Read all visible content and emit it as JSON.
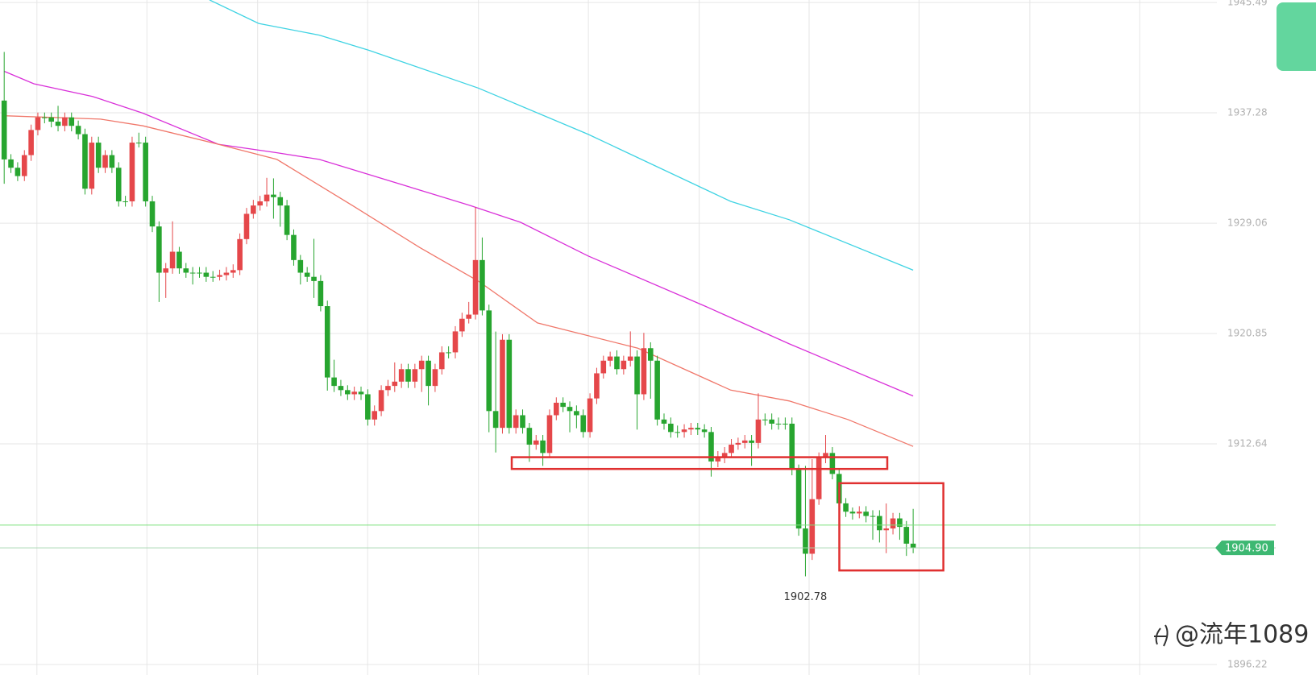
{
  "chart_data": {
    "type": "candlestick",
    "ylim": [
      1896.22,
      1945.49
    ],
    "yticks": [
      1945.49,
      1937.28,
      1929.06,
      1920.85,
      1912.64,
      1896.22
    ],
    "grid": true,
    "up_color": "#e5474a",
    "down_color": "#27a52f",
    "candles": [
      [
        1938.19,
        1941.81,
        1932.0,
        1933.81
      ],
      [
        1933.81,
        1934.2,
        1932.8,
        1933.19
      ],
      [
        1933.19,
        1933.6,
        1932.2,
        1932.57
      ],
      [
        1932.57,
        1934.5,
        1932.2,
        1934.13
      ],
      [
        1934.13,
        1936.4,
        1933.7,
        1936.0
      ],
      [
        1936.0,
        1937.3,
        1935.6,
        1936.94
      ],
      [
        1936.94,
        1937.3,
        1936.5,
        1936.94
      ],
      [
        1936.94,
        1937.3,
        1936.2,
        1936.62
      ],
      [
        1936.62,
        1937.8,
        1935.9,
        1936.31
      ],
      [
        1936.31,
        1937.3,
        1935.9,
        1936.94
      ],
      [
        1936.94,
        1937.3,
        1935.9,
        1936.31
      ],
      [
        1936.31,
        1936.7,
        1935.3,
        1935.69
      ],
      [
        1935.69,
        1936.1,
        1931.2,
        1931.63
      ],
      [
        1931.63,
        1935.5,
        1931.2,
        1935.06
      ],
      [
        1935.06,
        1935.5,
        1932.8,
        1933.19
      ],
      [
        1933.19,
        1934.5,
        1932.8,
        1934.13
      ],
      [
        1934.13,
        1934.5,
        1932.8,
        1933.19
      ],
      [
        1933.19,
        1933.6,
        1930.3,
        1930.69
      ],
      [
        1930.69,
        1931.1,
        1930.3,
        1930.69
      ],
      [
        1930.69,
        1935.5,
        1930.3,
        1935.06
      ],
      [
        1935.06,
        1935.8,
        1934.7,
        1935.06
      ],
      [
        1935.06,
        1935.5,
        1930.3,
        1930.69
      ],
      [
        1930.69,
        1931.1,
        1928.4,
        1928.82
      ],
      [
        1928.82,
        1929.2,
        1923.2,
        1925.38
      ],
      [
        1925.38,
        1926.1,
        1923.5,
        1925.7
      ],
      [
        1925.7,
        1929.2,
        1925.3,
        1926.94
      ],
      [
        1926.94,
        1927.3,
        1925.3,
        1925.7
      ],
      [
        1925.7,
        1926.1,
        1925.0,
        1925.38
      ],
      [
        1925.38,
        1925.8,
        1924.5,
        1925.38
      ],
      [
        1925.38,
        1925.8,
        1925.0,
        1925.38
      ],
      [
        1925.38,
        1925.8,
        1924.7,
        1925.07
      ],
      [
        1925.07,
        1925.5,
        1924.7,
        1925.07
      ],
      [
        1925.07,
        1925.6,
        1924.8,
        1925.2
      ],
      [
        1925.2,
        1925.8,
        1924.8,
        1925.38
      ],
      [
        1925.38,
        1926.0,
        1925.0,
        1925.57
      ],
      [
        1925.57,
        1928.3,
        1925.2,
        1927.88
      ],
      [
        1927.88,
        1930.2,
        1927.5,
        1929.76
      ],
      [
        1929.76,
        1930.8,
        1929.4,
        1930.38
      ],
      [
        1930.38,
        1931.1,
        1930.0,
        1930.69
      ],
      [
        1930.69,
        1932.44,
        1930.3,
        1931.19
      ],
      [
        1931.19,
        1932.4,
        1929.4,
        1931.0
      ],
      [
        1931.0,
        1931.4,
        1928.8,
        1930.38
      ],
      [
        1930.38,
        1930.8,
        1927.8,
        1928.19
      ],
      [
        1928.19,
        1928.6,
        1925.9,
        1926.32
      ],
      [
        1926.32,
        1926.7,
        1924.5,
        1925.38
      ],
      [
        1925.38,
        1925.8,
        1924.7,
        1925.07
      ],
      [
        1925.07,
        1927.9,
        1923.5,
        1924.76
      ],
      [
        1924.76,
        1925.2,
        1922.5,
        1922.89
      ],
      [
        1922.89,
        1923.3,
        1916.6,
        1917.58
      ],
      [
        1917.58,
        1918.9,
        1916.5,
        1916.95
      ],
      [
        1916.95,
        1917.4,
        1916.2,
        1916.64
      ],
      [
        1916.64,
        1917.0,
        1915.9,
        1916.33
      ],
      [
        1916.33,
        1916.9,
        1915.9,
        1916.52
      ],
      [
        1916.52,
        1916.9,
        1915.9,
        1916.33
      ],
      [
        1916.33,
        1916.7,
        1914.0,
        1914.45
      ],
      [
        1914.45,
        1915.5,
        1914.0,
        1915.08
      ],
      [
        1915.08,
        1917.0,
        1914.7,
        1916.64
      ],
      [
        1916.64,
        1917.4,
        1916.2,
        1916.95
      ],
      [
        1916.95,
        1918.7,
        1916.5,
        1917.27
      ],
      [
        1917.27,
        1918.6,
        1916.8,
        1918.2
      ],
      [
        1918.2,
        1918.6,
        1916.8,
        1917.27
      ],
      [
        1917.27,
        1918.6,
        1916.8,
        1918.2
      ],
      [
        1918.2,
        1919.2,
        1916.5,
        1918.83
      ],
      [
        1918.83,
        1919.2,
        1915.5,
        1916.95
      ],
      [
        1916.95,
        1918.6,
        1916.5,
        1918.2
      ],
      [
        1918.2,
        1919.9,
        1917.8,
        1919.45
      ],
      [
        1919.45,
        1919.9,
        1919.0,
        1919.45
      ],
      [
        1919.45,
        1921.4,
        1919.0,
        1921.01
      ],
      [
        1921.01,
        1922.4,
        1920.6,
        1921.95
      ],
      [
        1921.95,
        1923.2,
        1921.6,
        1922.26
      ],
      [
        1922.26,
        1930.26,
        1921.9,
        1926.32
      ],
      [
        1926.32,
        1928.0,
        1922.2,
        1922.57
      ],
      [
        1922.57,
        1923.0,
        1913.5,
        1915.08
      ],
      [
        1915.08,
        1921.0,
        1912.0,
        1913.83
      ],
      [
        1913.83,
        1920.8,
        1913.4,
        1920.39
      ],
      [
        1920.39,
        1920.8,
        1913.4,
        1913.83
      ],
      [
        1913.83,
        1915.2,
        1913.4,
        1914.77
      ],
      [
        1914.77,
        1915.2,
        1913.4,
        1913.83
      ],
      [
        1913.83,
        1914.2,
        1911.3,
        1912.58
      ],
      [
        1912.58,
        1913.3,
        1912.2,
        1912.89
      ],
      [
        1912.89,
        1913.3,
        1911.0,
        1911.96
      ],
      [
        1911.96,
        1915.2,
        1911.6,
        1914.77
      ],
      [
        1914.77,
        1916.1,
        1914.4,
        1915.7
      ],
      [
        1915.7,
        1916.1,
        1915.0,
        1915.39
      ],
      [
        1915.39,
        1915.8,
        1913.5,
        1915.08
      ],
      [
        1915.08,
        1915.5,
        1913.8,
        1914.77
      ],
      [
        1914.77,
        1915.2,
        1913.1,
        1913.52
      ],
      [
        1913.52,
        1916.4,
        1913.1,
        1916.02
      ],
      [
        1916.02,
        1918.3,
        1915.6,
        1917.89
      ],
      [
        1917.89,
        1919.2,
        1917.5,
        1918.83
      ],
      [
        1918.83,
        1919.5,
        1918.4,
        1919.14
      ],
      [
        1919.14,
        1919.6,
        1917.8,
        1918.2
      ],
      [
        1918.2,
        1919.2,
        1917.8,
        1918.83
      ],
      [
        1918.83,
        1921.01,
        1918.4,
        1919.14
      ],
      [
        1919.14,
        1919.6,
        1913.7,
        1916.33
      ],
      [
        1916.33,
        1920.9,
        1915.9,
        1919.76
      ],
      [
        1919.76,
        1920.2,
        1916.0,
        1918.83
      ],
      [
        1918.83,
        1919.2,
        1914.0,
        1914.45
      ],
      [
        1914.45,
        1914.9,
        1913.7,
        1914.14
      ],
      [
        1914.14,
        1914.6,
        1913.1,
        1913.52
      ],
      [
        1913.52,
        1914.0,
        1913.1,
        1913.52
      ],
      [
        1913.52,
        1914.1,
        1913.1,
        1913.71
      ],
      [
        1913.71,
        1914.2,
        1913.3,
        1913.83
      ],
      [
        1913.83,
        1914.2,
        1913.3,
        1913.71
      ],
      [
        1913.71,
        1914.1,
        1913.1,
        1913.52
      ],
      [
        1913.52,
        1913.9,
        1910.2,
        1911.33
      ],
      [
        1911.33,
        1912.1,
        1910.9,
        1911.64
      ],
      [
        1911.64,
        1912.4,
        1911.2,
        1911.96
      ],
      [
        1911.96,
        1913.0,
        1911.6,
        1912.58
      ],
      [
        1912.58,
        1913.1,
        1912.2,
        1912.71
      ],
      [
        1912.71,
        1913.3,
        1912.3,
        1912.89
      ],
      [
        1912.89,
        1913.3,
        1911.0,
        1912.71
      ],
      [
        1912.71,
        1916.4,
        1912.3,
        1914.45
      ],
      [
        1914.45,
        1914.9,
        1914.0,
        1914.45
      ],
      [
        1914.45,
        1914.9,
        1913.7,
        1914.14
      ],
      [
        1914.14,
        1914.6,
        1913.7,
        1914.14
      ],
      [
        1914.14,
        1914.6,
        1913.7,
        1914.14
      ],
      [
        1914.14,
        1914.6,
        1910.3,
        1910.71
      ],
      [
        1910.71,
        1911.1,
        1905.8,
        1906.34
      ],
      [
        1906.34,
        1911.0,
        1902.78,
        1904.46
      ],
      [
        1904.46,
        1911.5,
        1904.0,
        1908.52
      ],
      [
        1908.52,
        1912.0,
        1908.1,
        1911.64
      ],
      [
        1911.64,
        1913.3,
        1911.2,
        1911.96
      ],
      [
        1911.96,
        1912.4,
        1910.0,
        1910.4
      ],
      [
        1910.4,
        1910.8,
        1907.8,
        1908.21
      ],
      [
        1908.21,
        1908.6,
        1907.2,
        1907.59
      ],
      [
        1907.59,
        1907.9,
        1907.0,
        1907.46
      ],
      [
        1907.46,
        1908.0,
        1907.1,
        1907.59
      ],
      [
        1907.59,
        1908.0,
        1906.8,
        1907.27
      ],
      [
        1907.27,
        1907.7,
        1905.5,
        1907.27
      ],
      [
        1907.27,
        1907.7,
        1905.3,
        1906.21
      ],
      [
        1906.21,
        1908.2,
        1904.5,
        1906.34
      ],
      [
        1906.34,
        1907.5,
        1905.9,
        1907.09
      ],
      [
        1907.09,
        1907.5,
        1905.5,
        1906.46
      ],
      [
        1906.46,
        1906.9,
        1904.3,
        1905.21
      ],
      [
        1905.21,
        1907.8,
        1904.5,
        1904.9
      ]
    ],
    "series": [
      {
        "color": "#3fd3e3",
        "x": [
          30.5,
          37.8,
          46.8,
          54.2,
          70.4,
          86.7,
          107.9,
          116.6,
          135
        ],
        "values": [
          1945.68,
          1943.93,
          1943.06,
          1941.93,
          1939.12,
          1935.69,
          1930.69,
          1929.32,
          1925.57
        ]
      },
      {
        "color": "#d930d9",
        "x": [
          0,
          4.4,
          13.1,
          20.6,
          31.8,
          40.5,
          46.8,
          69.2,
          76.7,
          86.7,
          104.1,
          116.6,
          135
        ],
        "values": [
          1940.37,
          1939.44,
          1938.5,
          1937.25,
          1934.94,
          1934.31,
          1933.81,
          1930.38,
          1929.13,
          1926.63,
          1922.89,
          1920.08,
          1916.2
        ]
      },
      {
        "color": "#f0776a",
        "x": [
          0,
          14.3,
          20.6,
          31.8,
          40.5,
          51.7,
          61.7,
          70.4,
          79.2,
          94.1,
          107.9,
          116.6,
          125.3,
          135
        ],
        "values": [
          1937.06,
          1936.81,
          1936.31,
          1934.94,
          1933.81,
          1930.38,
          1927.26,
          1924.76,
          1921.64,
          1919.76,
          1916.64,
          1915.83,
          1914.45,
          1912.45
        ]
      }
    ],
    "price_line": {
      "value": 1906.59,
      "color": "#7ee07e"
    },
    "last_price": {
      "value": 1904.9,
      "label": "1904.90",
      "color": "#3db872"
    },
    "low_annotation": 1902.78,
    "watermark": "@流年1089"
  }
}
